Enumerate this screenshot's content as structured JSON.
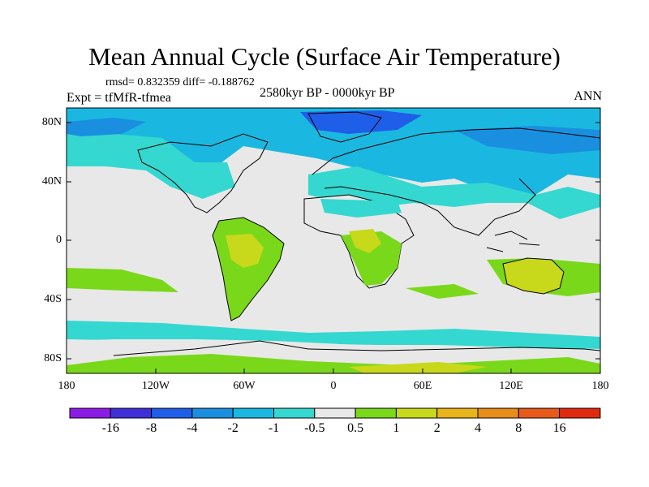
{
  "title": "Mean Annual Cycle (Surface Air Temperature)",
  "stats": "rmsd= 0.832359 diff= -0.188762",
  "experiment": "Expt = tfMfR-tfmea",
  "period": "2580kyr BP - 0000kyr BP",
  "season": "ANN",
  "lat_ticks": [
    "80N",
    "40N",
    "0",
    "40S",
    "80S"
  ],
  "lon_ticks": [
    "180",
    "120W",
    "60W",
    "0",
    "60E",
    "120E",
    "180"
  ],
  "colorbar": {
    "labels": [
      "-16",
      "-8",
      "-4",
      "-2",
      "-1",
      "-0.5",
      "0.5",
      "1",
      "2",
      "4",
      "8",
      "16"
    ],
    "colors": [
      "#8b1ce6",
      "#3f2fd8",
      "#1f5ee8",
      "#1a8fe0",
      "#1ab8e0",
      "#34d8d0",
      "#e8e8e8",
      "#7ad81a",
      "#c8d81a",
      "#e8b41a",
      "#e88c1a",
      "#e85a1a",
      "#e02a10"
    ]
  }
}
